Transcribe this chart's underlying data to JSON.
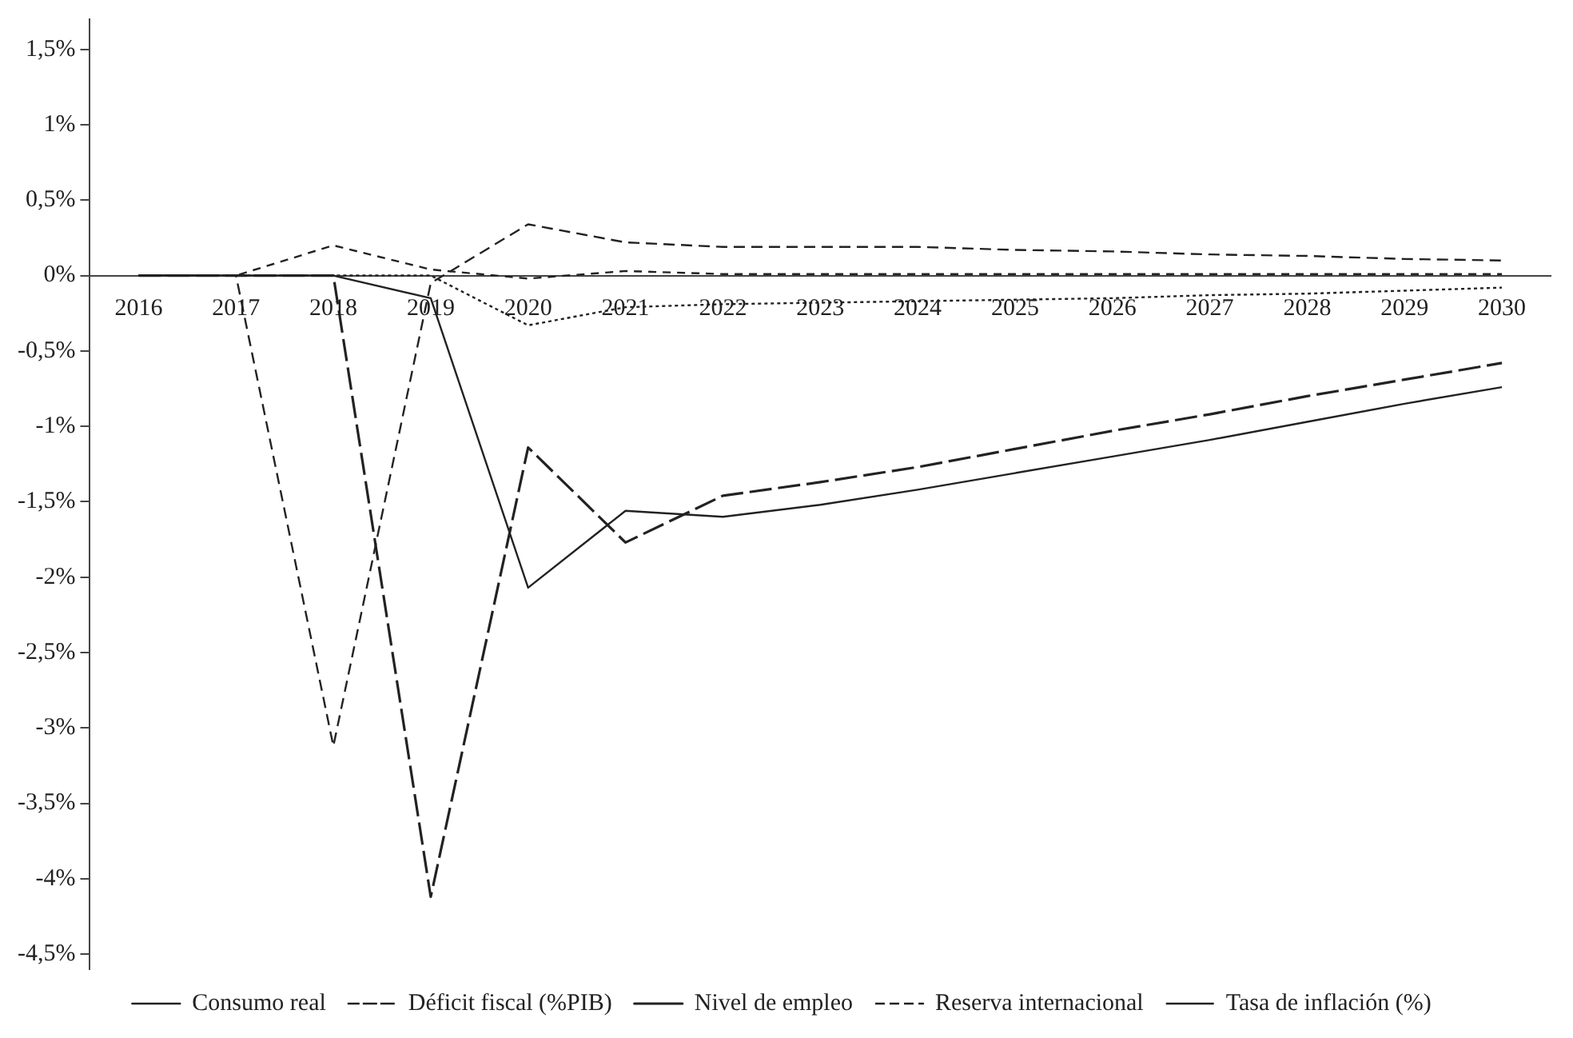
{
  "chart_data": {
    "type": "line",
    "categories": [
      "2016",
      "2017",
      "2018",
      "2019",
      "2020",
      "2021",
      "2022",
      "2023",
      "2024",
      "2025",
      "2026",
      "2027",
      "2028",
      "2029",
      "2030"
    ],
    "series": [
      {
        "name": "Consumo real",
        "color": "#222222",
        "line_style": "solid",
        "values": [
          0,
          0,
          0,
          -0.15,
          -2.07,
          -1.56,
          -1.6,
          -1.52,
          -1.42,
          -1.31,
          -1.2,
          -1.09,
          -0.97,
          -0.85,
          -0.74
        ]
      },
      {
        "name": "Déficit fiscal (%PIB)",
        "color": "#222222",
        "line_style": "dashed",
        "values": [
          0,
          0,
          -3.12,
          -0.05,
          0.34,
          0.22,
          0.19,
          0.19,
          0.19,
          0.17,
          0.16,
          0.14,
          0.13,
          0.11,
          0.1
        ]
      },
      {
        "name": "Nivel de empleo",
        "color": "#222222",
        "line_style": "dashed",
        "values": [
          0,
          0,
          0,
          -4.12,
          -1.14,
          -1.77,
          -1.46,
          -1.37,
          -1.27,
          -1.15,
          -1.03,
          -0.92,
          -0.8,
          -0.69,
          -0.58
        ]
      },
      {
        "name": "Reserva internacional",
        "color": "#222222",
        "line_style": "dashed",
        "values": [
          0,
          0,
          0.2,
          0.04,
          -0.02,
          0.03,
          0.01,
          0.01,
          0.01,
          0.01,
          0.01,
          0.01,
          0.01,
          0.01,
          0.01
        ]
      },
      {
        "name": "Tasa de inflación (%)",
        "color": "#222222",
        "line_style": "dotted",
        "values": [
          0,
          0,
          0,
          0,
          -0.33,
          -0.21,
          -0.19,
          -0.18,
          -0.17,
          -0.16,
          -0.15,
          -0.13,
          -0.12,
          -0.1,
          -0.08
        ]
      }
    ],
    "ylim": [
      -4.6,
      1.7
    ],
    "yticks": [
      {
        "value": -4.5,
        "label": "-4,5%"
      },
      {
        "value": -4,
        "label": "-4%"
      },
      {
        "value": -3.5,
        "label": "-3,5%"
      },
      {
        "value": -3,
        "label": "-3%"
      },
      {
        "value": -2.5,
        "label": "-2,5%"
      },
      {
        "value": -2,
        "label": "-2%"
      },
      {
        "value": -1.5,
        "label": "-1,5%"
      },
      {
        "value": -1,
        "label": "-1%"
      },
      {
        "value": -0.5,
        "label": "-0,5%"
      },
      {
        "value": 0,
        "label": "0%"
      },
      {
        "value": 0.5,
        "label": "0,5%"
      },
      {
        "value": 1,
        "label": "1%"
      },
      {
        "value": 1.5,
        "label": "1,5%"
      }
    ],
    "grid": false,
    "legend": "bottom",
    "marker": "none"
  }
}
